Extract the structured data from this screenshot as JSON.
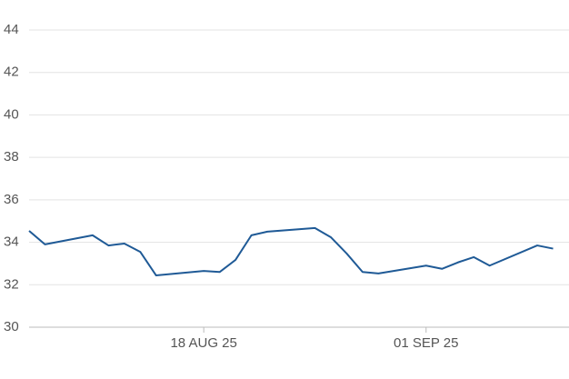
{
  "chart_data": {
    "type": "line",
    "x": [
      "2025-08-07",
      "2025-08-08",
      "2025-08-11",
      "2025-08-12",
      "2025-08-13",
      "2025-08-14",
      "2025-08-15",
      "2025-08-18",
      "2025-08-19",
      "2025-08-20",
      "2025-08-21",
      "2025-08-22",
      "2025-08-25",
      "2025-08-26",
      "2025-08-27",
      "2025-08-28",
      "2025-08-29",
      "2025-09-01",
      "2025-09-02",
      "2025-09-03",
      "2025-09-04",
      "2025-09-05",
      "2025-09-08",
      "2025-09-09"
    ],
    "series": [
      {
        "color": "#1f5a96",
        "values": [
          34.54,
          33.9,
          34.33,
          33.85,
          33.94,
          33.55,
          32.44,
          32.65,
          32.6,
          33.17,
          34.33,
          34.5,
          34.67,
          34.24,
          33.47,
          32.6,
          32.53,
          32.9,
          32.75,
          33.05,
          33.3,
          32.9,
          33.85,
          33.7
        ]
      }
    ],
    "xlim": [
      "2025-08-07",
      "2025-09-10"
    ],
    "xticks": [
      {
        "value": "2025-08-18",
        "label": "18 AUG 25"
      },
      {
        "value": "2025-09-01",
        "label": "01 SEP 25"
      }
    ],
    "ylim": [
      30,
      44
    ],
    "yticks": [
      30,
      32,
      34,
      36,
      38,
      40,
      42,
      44
    ],
    "grid": true
  }
}
